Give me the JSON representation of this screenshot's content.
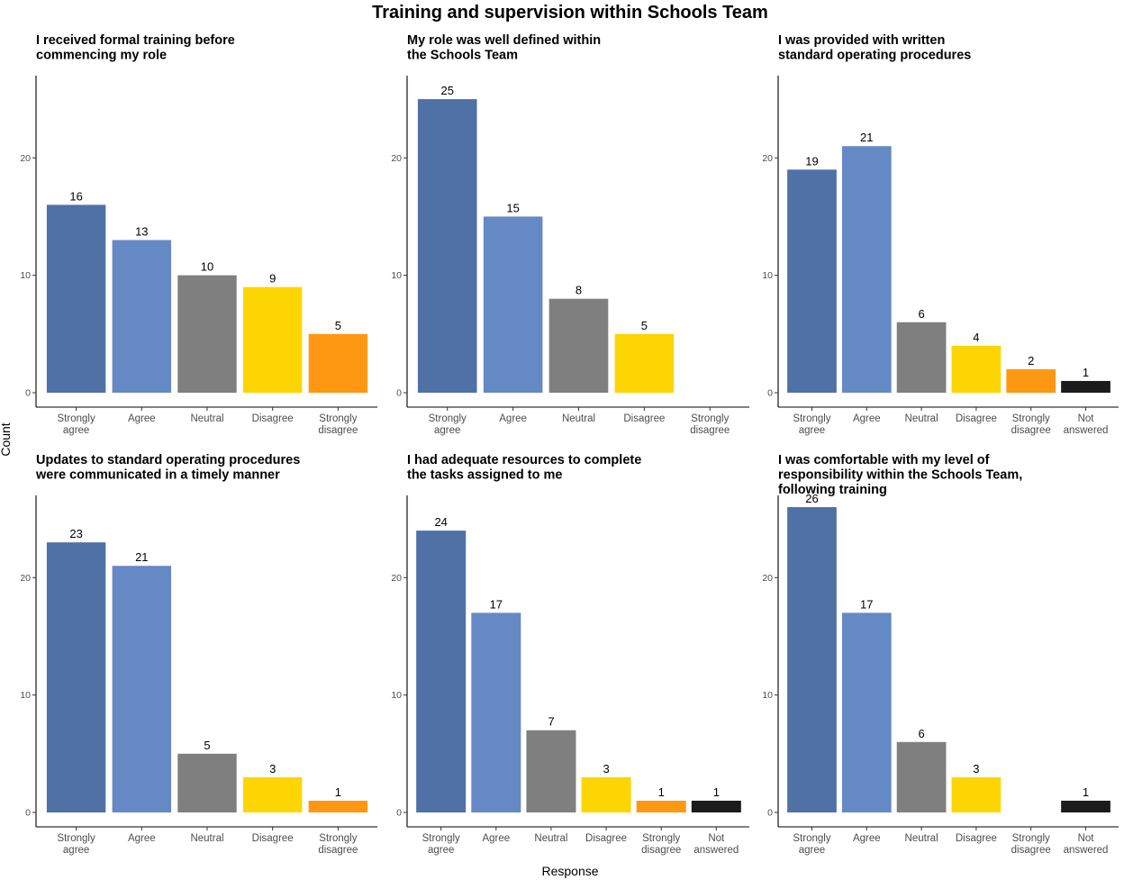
{
  "chart_data": {
    "title": "Training and supervision within Schools Team",
    "xlabel": "Response",
    "ylabel": "Count",
    "colors": {
      "Strongly agree": "#4F71A6",
      "Agree": "#6589C4",
      "Neutral": "#7F7F7F",
      "Disagree": "#FDD503",
      "Strongly disagree": "#FE9712",
      "Not answered": "#1B1B1B"
    },
    "panels": [
      {
        "type": "bar",
        "title": [
          "I received formal training before",
          "commencing my role"
        ],
        "categories": [
          "Strongly agree",
          "Agree",
          "Neutral",
          "Disagree",
          "Strongly disagree"
        ],
        "tick_labels": [
          [
            "Strongly",
            "agree"
          ],
          [
            "Agree"
          ],
          [
            "Neutral"
          ],
          [
            "Disagree"
          ],
          [
            "Strongly",
            "disagree"
          ]
        ],
        "values": [
          16,
          13,
          10,
          9,
          5
        ],
        "ylim": [
          0,
          27
        ],
        "yticks": [
          0,
          10,
          20
        ]
      },
      {
        "type": "bar",
        "title": [
          "My role was well defined within",
          "the Schools Team"
        ],
        "categories": [
          "Strongly agree",
          "Agree",
          "Neutral",
          "Disagree",
          "Strongly disagree"
        ],
        "tick_labels": [
          [
            "Strongly",
            "agree"
          ],
          [
            "Agree"
          ],
          [
            "Neutral"
          ],
          [
            "Disagree"
          ],
          [
            "Strongly",
            "disagree"
          ]
        ],
        "values": [
          25,
          15,
          8,
          5,
          0
        ],
        "ylim": [
          0,
          27
        ],
        "yticks": [
          0,
          10,
          20
        ]
      },
      {
        "type": "bar",
        "title": [
          "I was provided with written",
          "standard operating procedures"
        ],
        "categories": [
          "Strongly agree",
          "Agree",
          "Neutral",
          "Disagree",
          "Strongly disagree",
          "Not answered"
        ],
        "tick_labels": [
          [
            "Strongly",
            "agree"
          ],
          [
            "Agree"
          ],
          [
            "Neutral"
          ],
          [
            "Disagree"
          ],
          [
            "Strongly",
            "disagree"
          ],
          [
            "Not",
            "answered"
          ]
        ],
        "values": [
          19,
          21,
          6,
          4,
          2,
          1
        ],
        "ylim": [
          0,
          27
        ],
        "yticks": [
          0,
          10,
          20
        ]
      },
      {
        "type": "bar",
        "title": [
          "Updates to standard operating procedures",
          "were communicated in a timely manner"
        ],
        "categories": [
          "Strongly agree",
          "Agree",
          "Neutral",
          "Disagree",
          "Strongly disagree"
        ],
        "tick_labels": [
          [
            "Strongly",
            "agree"
          ],
          [
            "Agree"
          ],
          [
            "Neutral"
          ],
          [
            "Disagree"
          ],
          [
            "Strongly",
            "disagree"
          ]
        ],
        "values": [
          23,
          21,
          5,
          3,
          1
        ],
        "ylim": [
          0,
          27
        ],
        "yticks": [
          0,
          10,
          20
        ]
      },
      {
        "type": "bar",
        "title": [
          "I had adequate resources to complete",
          "the tasks assigned to me"
        ],
        "categories": [
          "Strongly agree",
          "Agree",
          "Neutral",
          "Disagree",
          "Strongly disagree",
          "Not answered"
        ],
        "tick_labels": [
          [
            "Strongly",
            "agree"
          ],
          [
            "Agree"
          ],
          [
            "Neutral"
          ],
          [
            "Disagree"
          ],
          [
            "Strongly",
            "disagree"
          ],
          [
            "Not",
            "answered"
          ]
        ],
        "values": [
          24,
          17,
          7,
          3,
          1,
          1
        ],
        "ylim": [
          0,
          27
        ],
        "yticks": [
          0,
          10,
          20
        ]
      },
      {
        "type": "bar",
        "title": [
          "I was comfortable with my level of",
          "responsibility within the Schools Team,",
          "following training"
        ],
        "categories": [
          "Strongly agree",
          "Agree",
          "Neutral",
          "Disagree",
          "Strongly disagree",
          "Not answered"
        ],
        "tick_labels": [
          [
            "Strongly",
            "agree"
          ],
          [
            "Agree"
          ],
          [
            "Neutral"
          ],
          [
            "Disagree"
          ],
          [
            "Strongly",
            "disagree"
          ],
          [
            "Not",
            "answered"
          ]
        ],
        "values": [
          26,
          17,
          6,
          3,
          0,
          1
        ],
        "ylim": [
          0,
          27
        ],
        "yticks": [
          0,
          10,
          20
        ]
      }
    ]
  }
}
